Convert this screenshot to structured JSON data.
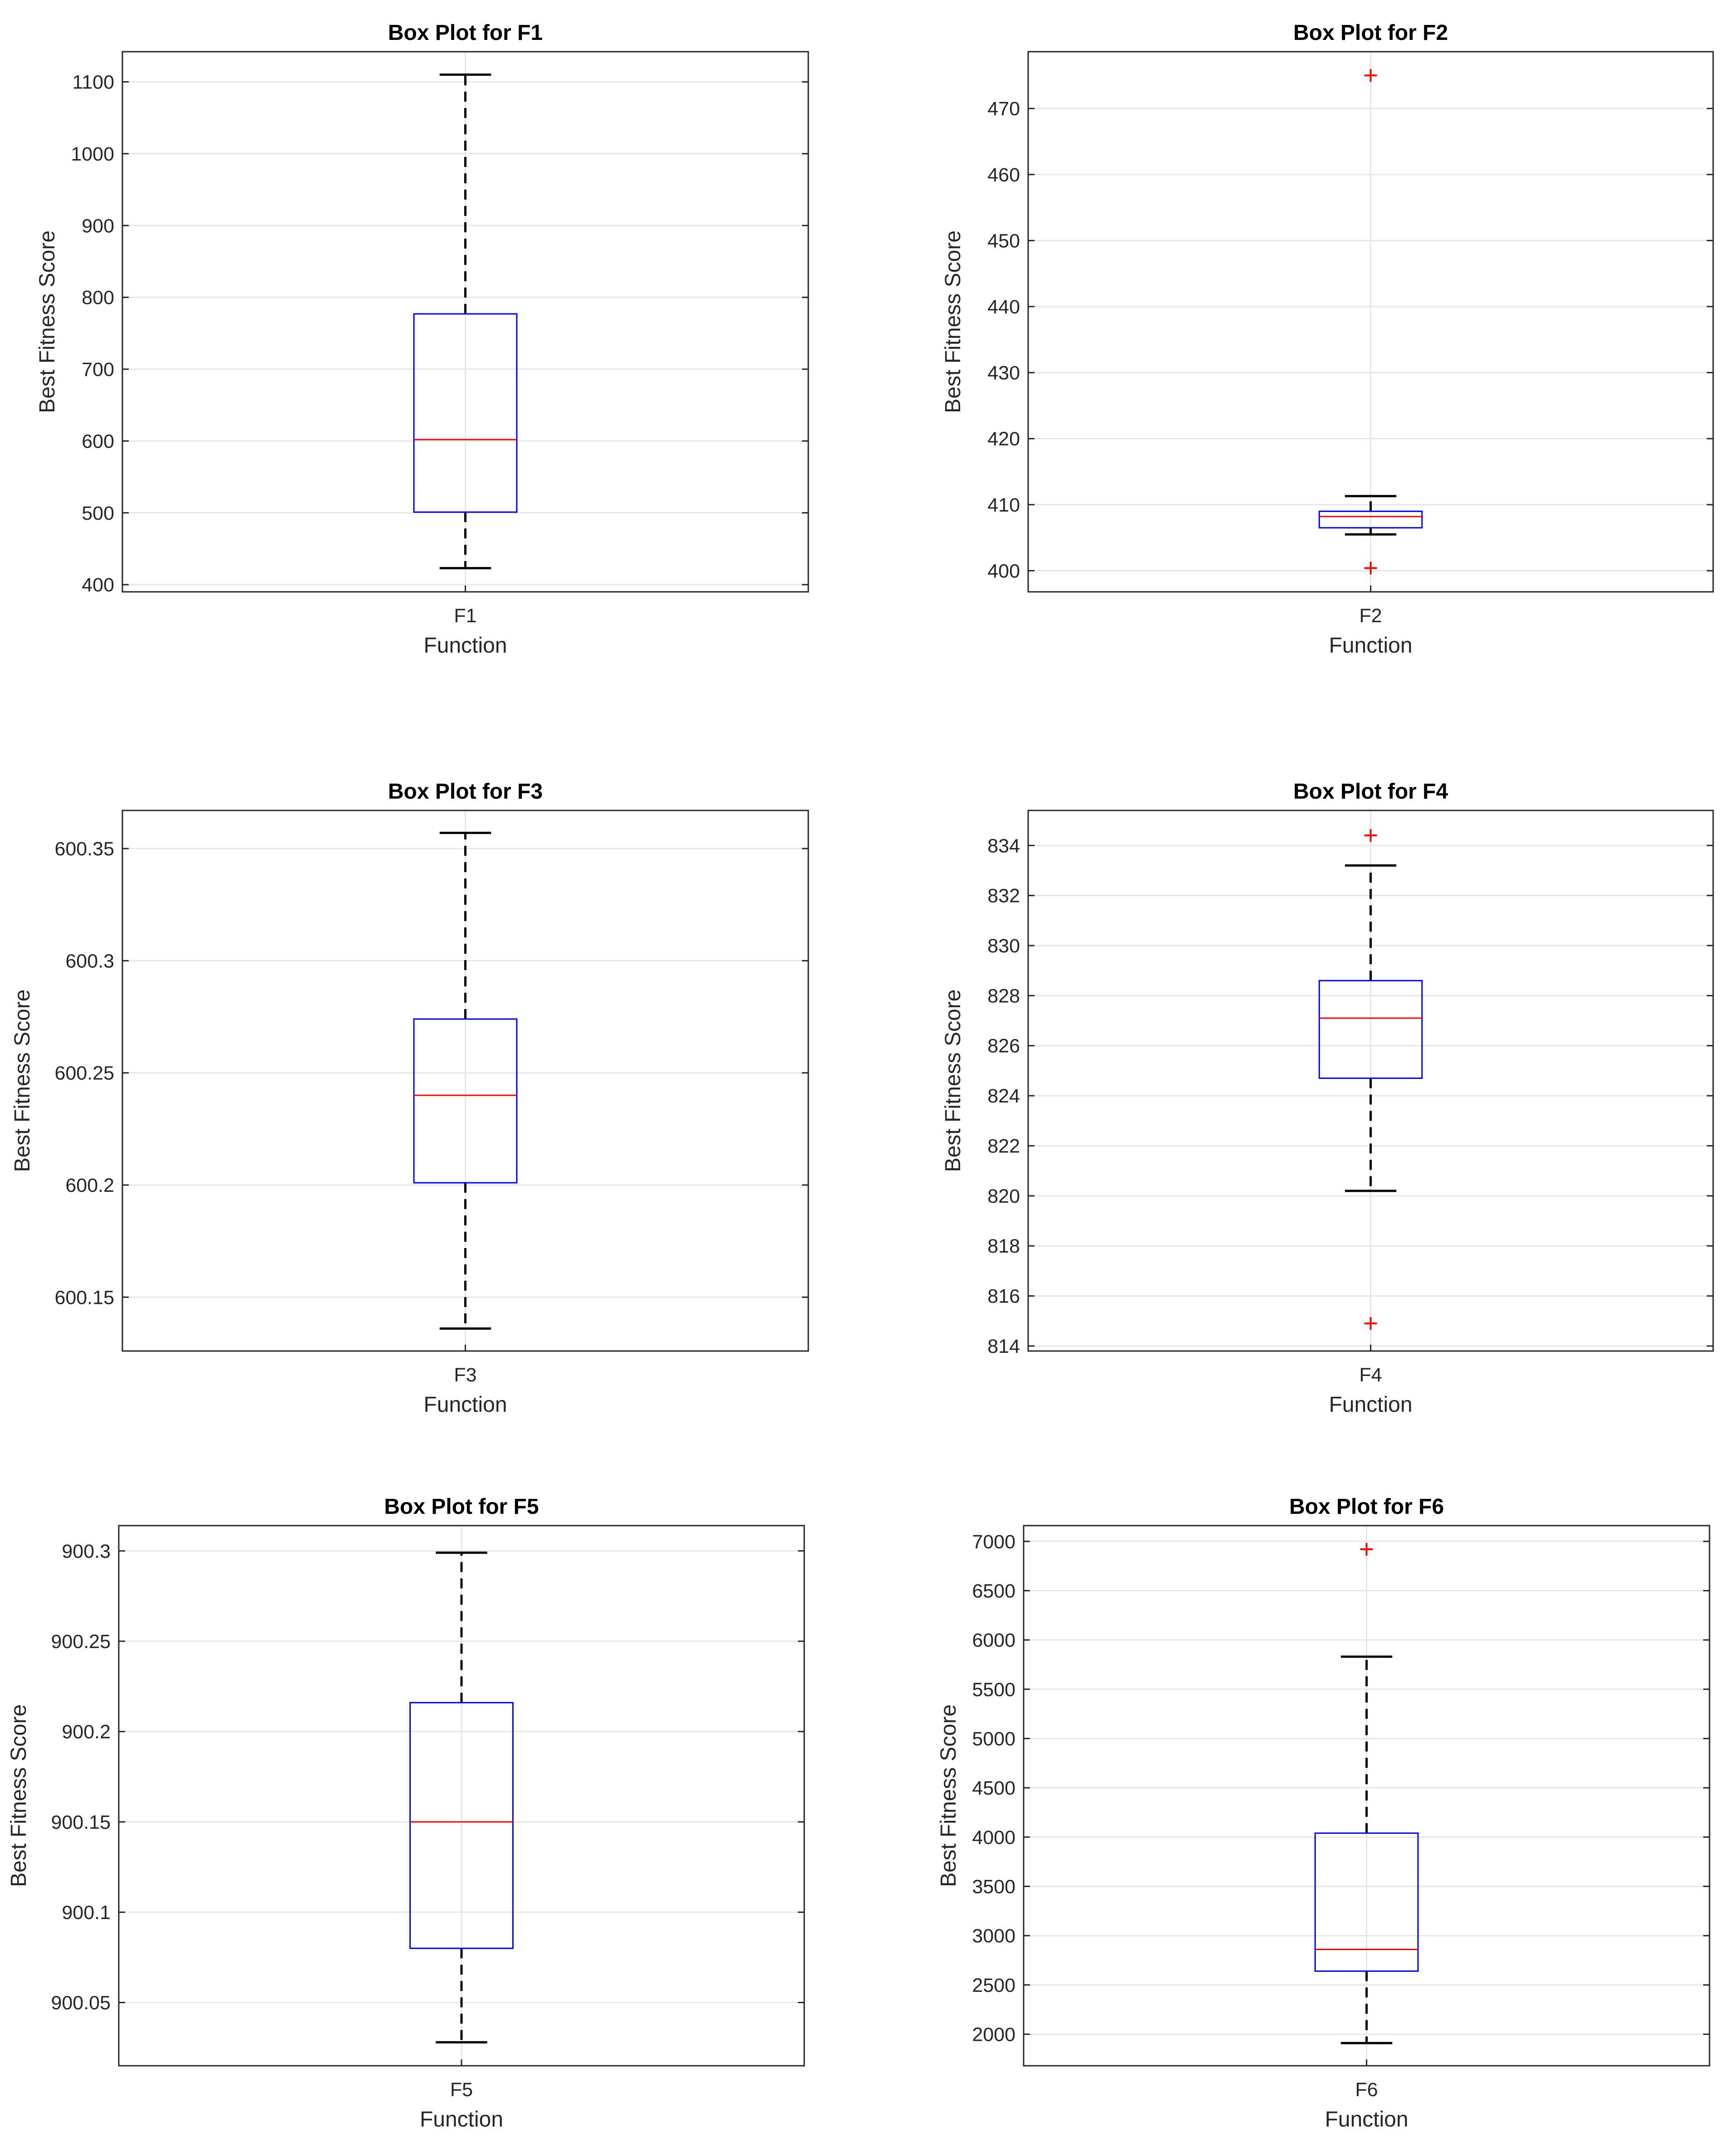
{
  "chart_data": [
    {
      "type": "box",
      "title": "Box Plot for F1",
      "xlabel": "Function",
      "ylabel": "Best Fitness Score",
      "categories": [
        "F1"
      ],
      "ylim": [
        390,
        1142
      ],
      "yticks": [
        400,
        500,
        600,
        700,
        800,
        900,
        1000,
        1100
      ],
      "ytick_labels": [
        "400",
        "500",
        "600",
        "700",
        "800",
        "900",
        "1000",
        "1100"
      ],
      "box": {
        "whisker_low": 423,
        "q1": 501,
        "median": 602,
        "q3": 777,
        "whisker_high": 1110
      },
      "outliers": []
    },
    {
      "type": "box",
      "title": "Box Plot for F2",
      "xlabel": "Function",
      "ylabel": "Best Fitness Score",
      "categories": [
        "F2"
      ],
      "ylim": [
        396.8,
        478.6
      ],
      "yticks": [
        400,
        410,
        420,
        430,
        440,
        450,
        460,
        470
      ],
      "ytick_labels": [
        "400",
        "410",
        "420",
        "430",
        "440",
        "450",
        "460",
        "470"
      ],
      "box": {
        "whisker_low": 405.5,
        "q1": 406.5,
        "median": 408.2,
        "q3": 409.0,
        "whisker_high": 411.3
      },
      "outliers": [
        400.4,
        475.0
      ]
    },
    {
      "type": "box",
      "title": "Box Plot for F3",
      "xlabel": "Function",
      "ylabel": "Best Fitness Score",
      "categories": [
        "F3"
      ],
      "ylim": [
        600.126,
        600.367
      ],
      "yticks": [
        600.15,
        600.2,
        600.25,
        600.3,
        600.35
      ],
      "ytick_labels": [
        "600.15",
        "600.2",
        "600.25",
        "600.3",
        "600.35"
      ],
      "box": {
        "whisker_low": 600.136,
        "q1": 600.201,
        "median": 600.24,
        "q3": 600.274,
        "whisker_high": 600.357
      },
      "outliers": []
    },
    {
      "type": "box",
      "title": "Box Plot for F4",
      "xlabel": "Function",
      "ylabel": "Best Fitness Score",
      "categories": [
        "F4"
      ],
      "ylim": [
        813.8,
        835.4
      ],
      "yticks": [
        814,
        816,
        818,
        820,
        822,
        824,
        826,
        828,
        830,
        832,
        834
      ],
      "ytick_labels": [
        "814",
        "816",
        "818",
        "820",
        "822",
        "824",
        "826",
        "828",
        "830",
        "832",
        "834"
      ],
      "box": {
        "whisker_low": 820.2,
        "q1": 824.7,
        "median": 827.1,
        "q3": 828.6,
        "whisker_high": 833.2
      },
      "outliers": [
        814.9,
        834.4
      ]
    },
    {
      "type": "box",
      "title": "Box Plot for F5",
      "xlabel": "Function",
      "ylabel": "Best Fitness Score",
      "categories": [
        "F5"
      ],
      "ylim": [
        900.015,
        900.314
      ],
      "yticks": [
        900.05,
        900.1,
        900.15,
        900.2,
        900.25,
        900.3
      ],
      "ytick_labels": [
        "900.05",
        "900.1",
        "900.15",
        "900.2",
        "900.25",
        "900.3"
      ],
      "box": {
        "whisker_low": 900.028,
        "q1": 900.08,
        "median": 900.15,
        "q3": 900.216,
        "whisker_high": 900.299
      },
      "outliers": []
    },
    {
      "type": "box",
      "title": "Box Plot for F6",
      "xlabel": "Function",
      "ylabel": "Best Fitness Score",
      "categories": [
        "F6"
      ],
      "ylim": [
        1680,
        7160
      ],
      "yticks": [
        2000,
        2500,
        3000,
        3500,
        4000,
        4500,
        5000,
        5500,
        6000,
        6500,
        7000
      ],
      "ytick_labels": [
        "2000",
        "2500",
        "3000",
        "3500",
        "4000",
        "4500",
        "5000",
        "5500",
        "6000",
        "6500",
        "7000"
      ],
      "box": {
        "whisker_low": 1910,
        "q1": 2640,
        "median": 2860,
        "q3": 4040,
        "whisker_high": 5830
      },
      "outliers": [
        6920
      ]
    }
  ]
}
